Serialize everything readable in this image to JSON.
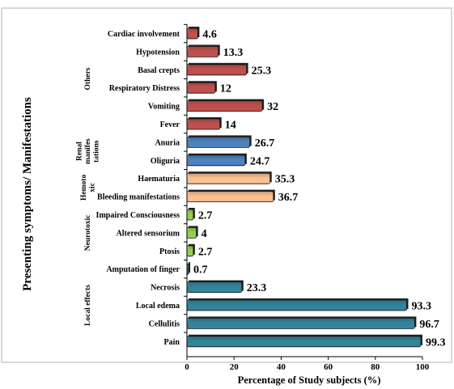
{
  "chart_data": {
    "type": "bar",
    "orientation": "horizontal",
    "ylabel": "Presenting symptoms/ Manifestations",
    "xlabel": "Percentage of Study subjects  (%)",
    "xlim": [
      0,
      100
    ],
    "xticks": [
      "0",
      "20",
      "40",
      "60",
      "80",
      "100"
    ],
    "grid": false,
    "categories": [
      "Cardiac involvement",
      "Hypotension",
      "Basal crepts",
      "Respiratory Distress",
      "Vomiting",
      "Fever",
      "Anuria",
      "Oliguria",
      "Haematuria",
      "Bleeding manifestations",
      "Impaired  Consciousness",
      "Altered sensorium",
      "Ptosis",
      "Amputation of finger",
      "Necrosis",
      "Local edema",
      "Cellulitis",
      "Pain"
    ],
    "values": [
      4.6,
      13.3,
      25.3,
      12,
      32,
      14,
      26.7,
      24.7,
      35.3,
      36.7,
      2.7,
      4,
      2.7,
      0.7,
      23.3,
      93.3,
      96.7,
      99.3
    ],
    "value_labels": [
      "4.6",
      "13.3",
      "25.3",
      "12",
      "32",
      "14",
      "26.7",
      "24.7",
      "35.3",
      "36.7",
      "2.7",
      "4",
      "2.7",
      "0.7",
      "23.3",
      "93.3",
      "96.7",
      "99.3"
    ],
    "bar_colors": [
      "#c0504d",
      "#c0504d",
      "#c0504d",
      "#c0504d",
      "#c0504d",
      "#c0504d",
      "#4f81bd",
      "#4f81bd",
      "#fac090",
      "#fac090",
      "#92d050",
      "#92d050",
      "#92d050",
      "#31849b",
      "#31849b",
      "#31849b",
      "#31849b",
      "#31849b"
    ],
    "groups": [
      {
        "lines": [
          "Others"
        ],
        "categories": [
          "Cardiac involvement",
          "Hypotension",
          "Basal crepts",
          "Respiratory Distress",
          "Vomiting",
          "Fever"
        ]
      },
      {
        "lines": [
          "Renal",
          "manifes",
          "tations"
        ],
        "categories": [
          "Anuria",
          "Oliguria"
        ]
      },
      {
        "lines": [
          "Hemoto",
          "xic"
        ],
        "categories": [
          "Haematuria",
          "Bleeding manifestations"
        ]
      },
      {
        "lines": [
          "Neurotoxic"
        ],
        "categories": [
          "Impaired  Consciousness",
          "Altered sensorium",
          "Ptosis"
        ]
      },
      {
        "lines": [
          "Local effects"
        ],
        "categories": [
          "Amputation of finger",
          "Necrosis",
          "Local edema",
          "Cellulitis",
          "Pain"
        ]
      }
    ]
  }
}
